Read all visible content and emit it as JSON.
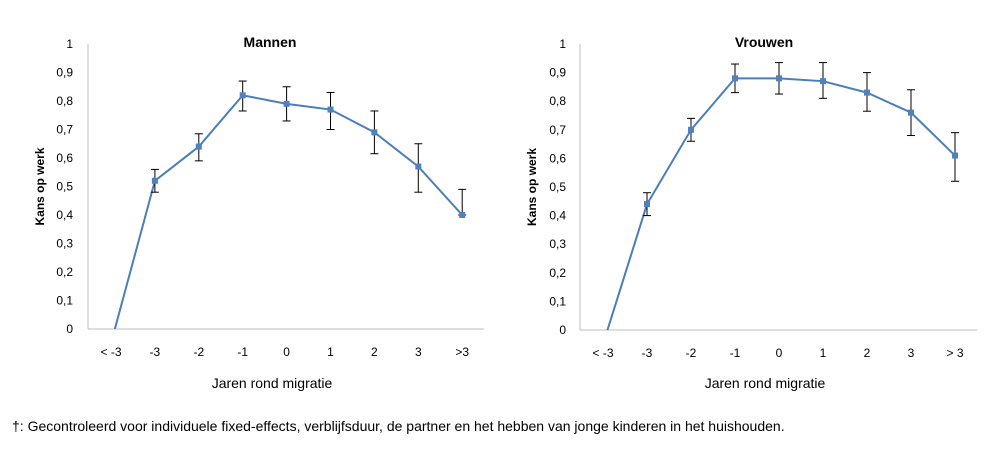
{
  "chart_data": [
    {
      "type": "line",
      "title": "Mannen",
      "ylabel": "Kans op werk",
      "xlabel": "Jaren rond migratie",
      "categories": [
        "< -3",
        "-3",
        "-2",
        "-1",
        "0",
        "1",
        "2",
        "3",
        ">3"
      ],
      "values": [
        -0.05,
        0.52,
        0.64,
        0.82,
        0.79,
        0.77,
        0.69,
        0.57,
        0.4
      ],
      "error_low": [
        null,
        0.48,
        0.59,
        0.765,
        0.73,
        0.7,
        0.615,
        0.48,
        0.4
      ],
      "error_high": [
        null,
        0.56,
        0.685,
        0.87,
        0.85,
        0.83,
        0.765,
        0.65,
        0.49
      ],
      "ylim": [
        0,
        1
      ],
      "yticks": [
        "0",
        "0,1",
        "0,2",
        "0,3",
        "0,4",
        "0,5",
        "0,6",
        "0,7",
        "0,8",
        "0,9",
        "1"
      ],
      "series_color": "#4A7EBB",
      "marker_color": "#4F81BD"
    },
    {
      "type": "line",
      "title": "Vrouwen",
      "ylabel": "Kans op werk",
      "xlabel": "Jaren rond migratie",
      "categories": [
        "< -3",
        "-3",
        "-2",
        "-1",
        "0",
        "1",
        "2",
        "3",
        "> 3"
      ],
      "values": [
        -0.05,
        0.44,
        0.7,
        0.88,
        0.88,
        0.87,
        0.83,
        0.76,
        0.61
      ],
      "error_low": [
        null,
        0.4,
        0.66,
        0.83,
        0.825,
        0.81,
        0.765,
        0.68,
        0.52
      ],
      "error_high": [
        null,
        0.48,
        0.74,
        0.93,
        0.935,
        0.935,
        0.9,
        0.84,
        0.69
      ],
      "ylim": [
        0,
        1
      ],
      "yticks": [
        "0",
        "0,1",
        "0,2",
        "0,3",
        "0,4",
        "0,5",
        "0,6",
        "0,7",
        "0,8",
        "0,9",
        "1"
      ],
      "series_color": "#4A7EBB",
      "marker_color": "#4F81BD"
    }
  ],
  "footnote": "†: Gecontroleerd voor individuele fixed-effects, verblijfsduur, de partner en het hebben van jonge kinderen in het huishouden."
}
